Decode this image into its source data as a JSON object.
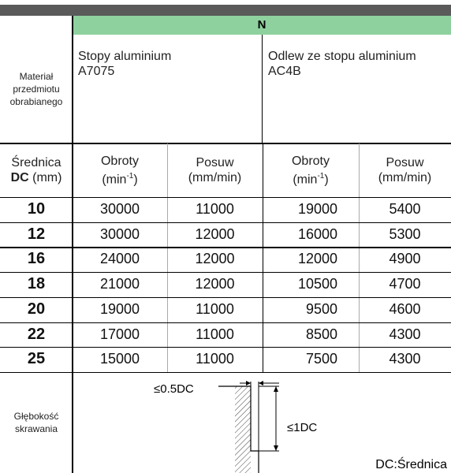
{
  "header": {
    "group": "N",
    "material_label": [
      "Materiał",
      "przedmiotu",
      "obrabianego"
    ],
    "materials": [
      [
        "Stopy aluminium",
        "A7075"
      ],
      [
        "Odlew ze stopu aluminium",
        "AC4B"
      ]
    ],
    "diameter": {
      "label": "Średnica",
      "bold": "DC",
      "unit": "(mm)"
    },
    "speed": {
      "label": "Obroty",
      "unit_open": "(min",
      "unit_sup": "-1",
      "unit_close": ")"
    },
    "feed": {
      "label": "Posuw",
      "unit": "(mm/min)"
    }
  },
  "table": {
    "rows": [
      [
        10,
        30000,
        11000,
        19000,
        5400
      ],
      [
        12,
        30000,
        12000,
        16000,
        5300
      ],
      [
        16,
        24000,
        12000,
        12000,
        4900
      ],
      [
        18,
        21000,
        12000,
        10500,
        4700
      ],
      [
        20,
        19000,
        11000,
        9500,
        4600
      ],
      [
        22,
        17000,
        11000,
        8500,
        4300
      ],
      [
        25,
        15000,
        11000,
        7500,
        4300
      ]
    ]
  },
  "depth": {
    "label": [
      "Głębokość",
      "skrawania"
    ],
    "width_label": "≤0.5DC",
    "depth_label": "≤1DC",
    "note": "DC:Średnica"
  }
}
